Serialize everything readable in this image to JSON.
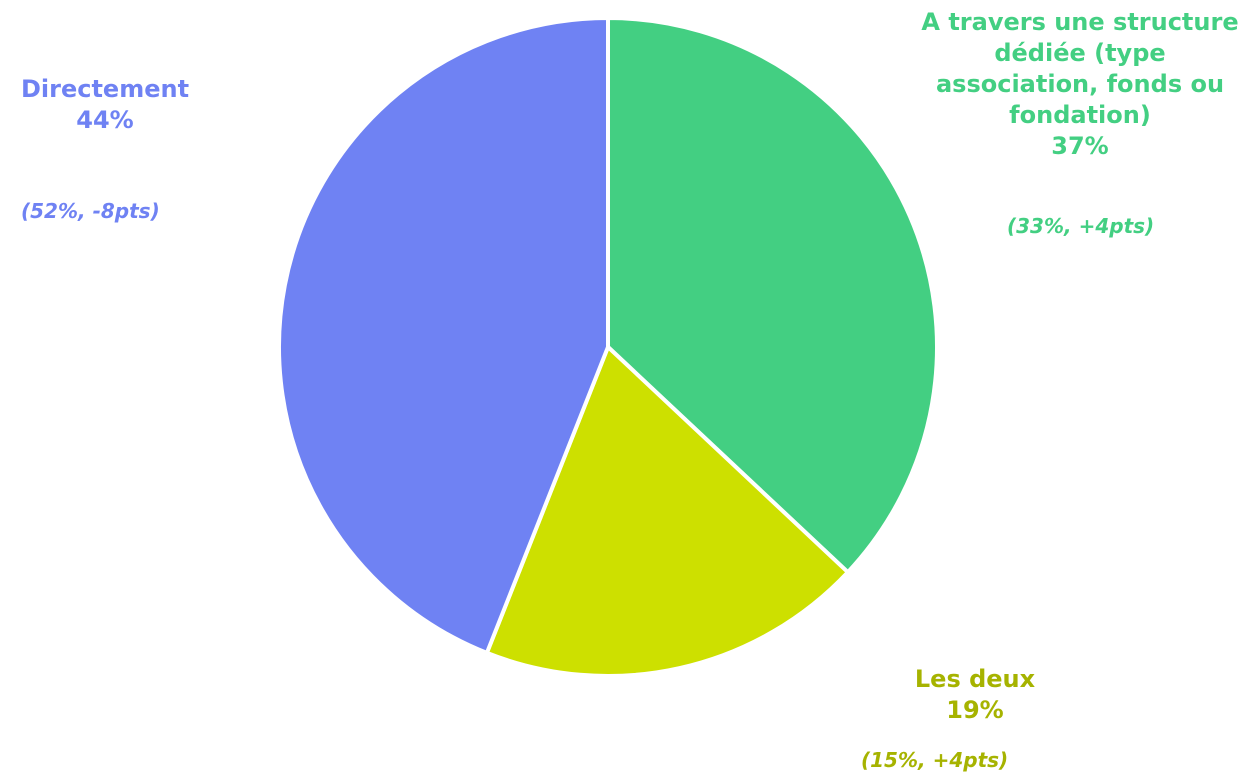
{
  "chart_data": {
    "type": "pie",
    "slices": [
      {
        "label": "A travers une structure dédiée (type association, fonds ou fondation)",
        "value": 37,
        "value_label": "37%",
        "note": "(33%, +4pts)",
        "color": "#43cf82",
        "label_color": "#43cf82"
      },
      {
        "label": "Les deux",
        "value": 19,
        "value_label": "19%",
        "note": "(15%, +4pts)",
        "color": "#cde000",
        "label_color": "#a6b300"
      },
      {
        "label": "Directement",
        "value": 44,
        "value_label": "44%",
        "note": "(52%, -8pts)",
        "color": "#6f82f3",
        "label_color": "#6f82f3"
      }
    ]
  }
}
